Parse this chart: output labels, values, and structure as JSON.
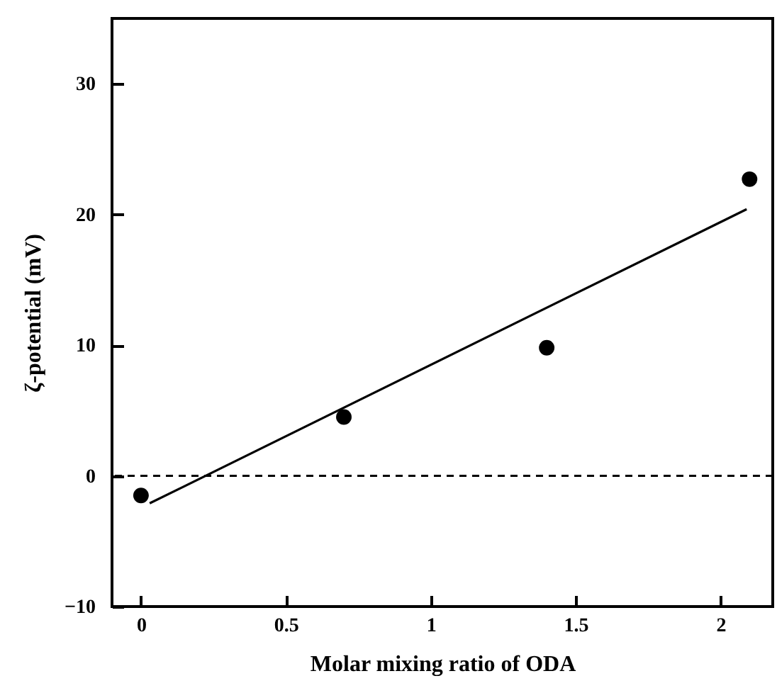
{
  "chart_data": {
    "type": "scatter",
    "xlabel": "Molar mixing ratio of ODA",
    "ylabel": "ζ-potential (mV)",
    "x": [
      0,
      0.7,
      1.4,
      2.1
    ],
    "series": [
      {
        "color": "#000000",
        "marker": "circle",
        "values": [
          -1.5,
          4.5,
          9.8,
          22.7
        ]
      },
      {
        "type": "line",
        "color": "#000000",
        "marker": "none",
        "x": [
          0.03,
          2.09
        ],
        "values": [
          -2.1,
          20.4
        ]
      }
    ],
    "xlim": [
      -0.1,
      2.18
    ],
    "xticks": [
      0,
      0.5,
      1,
      1.5,
      2
    ],
    "ylim": [
      -10,
      35
    ],
    "yticks": [
      -10,
      0,
      10,
      20,
      30
    ],
    "ref_lines": [
      {
        "axis": "y",
        "value": 0,
        "color": "#000000",
        "line_style": "dashed"
      }
    ],
    "grid": false
  }
}
